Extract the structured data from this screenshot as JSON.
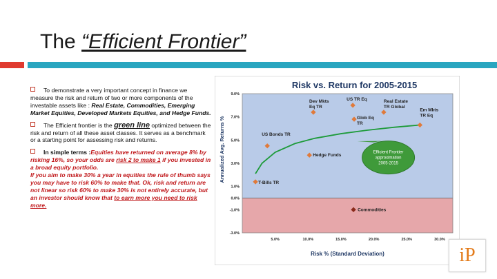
{
  "title": {
    "prefix": "The ",
    "emphasis": "“Efficient Frontier”"
  },
  "colors": {
    "red_bar": "#e03a2f",
    "teal_bar": "#2aa6c0",
    "frontier_line": "#1e9b3a",
    "plot_bg": "#b9cbe8",
    "negative_bg": "#e6a7aa",
    "marker": "#e07a3a"
  },
  "bullets": [
    {
      "parts": [
        "To demonstrate a very important concept in finance we measure the risk and return of two or more components of the investable assets like : ",
        "Real Estate, Commodities, Emerging Market Equities, Developed Markets Equities, and Hedge Funds."
      ]
    },
    {
      "parts": [
        "The Efficient frontier is the ",
        "green line",
        " optimized between the risk and return of all these asset classes. It serves as a benchmark or a starting point for assessing risk  and returns."
      ]
    },
    {
      "parts": [
        "In simple terms :",
        "Equities have returned on average 8% by risking 16%, so your odds are ",
        "risk 2 to make 1",
        " if you invested in a broad equity portfolio.",
        "If you aim to make 30% a year in equities the rule of thumb says you may have to risk 60% to make that. Ok, risk and return are not linear so risk 60% to make 30% is not entirely accurate, but an investor should know that ",
        "to earn more you need to risk more."
      ]
    }
  ],
  "logo": {
    "text": "iP"
  },
  "chart_data": {
    "type": "scatter",
    "title": "Risk vs. Return for 2005-2015",
    "xlabel": "Risk % (Standard Deviation)",
    "ylabel": "Annualized Avg. Returns %",
    "xlim": [
      0,
      32
    ],
    "ylim": [
      -3,
      9
    ],
    "x_ticks": [
      "5.0%",
      "10.0%",
      "15.0%",
      "20.0%",
      "25.0%",
      "30.0%"
    ],
    "y_ticks": [
      "9.0%",
      "7.0%",
      "5.0%",
      "3.0%",
      "1.0%",
      "0.0%",
      "-1.0%",
      "-3.0%"
    ],
    "points": [
      {
        "name": "T-Bills TR",
        "x": 2.0,
        "y": 1.4
      },
      {
        "name": "US Bonds TR",
        "x": 3.8,
        "y": 4.5
      },
      {
        "name": "Hedge Funds",
        "x": 10.2,
        "y": 3.7
      },
      {
        "name": "Dev Mkts Eq TR",
        "x": 10.8,
        "y": 7.4
      },
      {
        "name": "US TR Eq",
        "x": 16.8,
        "y": 8.0
      },
      {
        "name": "Glob Eq TR",
        "x": 17.0,
        "y": 6.8
      },
      {
        "name": "Real Estate TR Global",
        "x": 21.5,
        "y": 7.4
      },
      {
        "name": "Em Mkts TR Eq",
        "x": 27.0,
        "y": 6.3
      },
      {
        "name": "Commodities",
        "x": 16.9,
        "y": -1.0
      }
    ],
    "frontier": {
      "label": "Efficient Frontier approximation 2005-2015",
      "x": [
        2.0,
        3.0,
        5.0,
        8.0,
        11.0,
        15.0,
        19.0,
        23.0,
        27.0
      ],
      "y": [
        2.1,
        3.0,
        3.95,
        4.7,
        5.15,
        5.55,
        5.85,
        6.1,
        6.3
      ]
    }
  }
}
